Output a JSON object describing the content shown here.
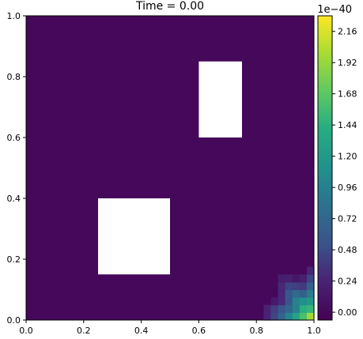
{
  "chart_data": {
    "type": "heatmap",
    "title": "Time = 0.00",
    "xlabel": "",
    "ylabel": "",
    "xlim": [
      0.0,
      1.0
    ],
    "ylim": [
      0.0,
      1.0
    ],
    "x_ticks": [
      0.0,
      0.2,
      0.4,
      0.6,
      0.8,
      1.0
    ],
    "x_tick_labels": [
      "0.0",
      "0.2",
      "0.4",
      "0.6",
      "0.8",
      "1.0"
    ],
    "y_ticks": [
      0.0,
      0.2,
      0.4,
      0.6,
      0.8,
      1.0
    ],
    "y_tick_labels": [
      "0.0",
      "0.2",
      "0.4",
      "0.6",
      "0.8",
      "1.0"
    ],
    "grid": false,
    "colormap": "viridis",
    "background_value": 0.0,
    "obstacles": [
      {
        "x": [
          0.25,
          0.5
        ],
        "y": [
          0.15,
          0.4
        ]
      },
      {
        "x": [
          0.6,
          0.75
        ],
        "y": [
          0.6,
          0.85
        ]
      }
    ],
    "source": {
      "center": [
        1.0,
        0.0
      ],
      "peak": 2.24,
      "radius": 0.2
    },
    "colorbar": {
      "exponent_label": "1e−40",
      "min": -0.06,
      "max": 2.28,
      "ticks": [
        0.0,
        0.24,
        0.48,
        0.72,
        0.96,
        1.2,
        1.44,
        1.68,
        1.92,
        2.16
      ],
      "tick_labels": [
        "0.00",
        "0.24",
        "0.48",
        "0.72",
        "0.96",
        "1.20",
        "1.44",
        "1.68",
        "1.92",
        "2.16"
      ]
    },
    "colors": {
      "low": "#440154",
      "high": "#fde725",
      "obstacle": "#ffffff"
    }
  }
}
